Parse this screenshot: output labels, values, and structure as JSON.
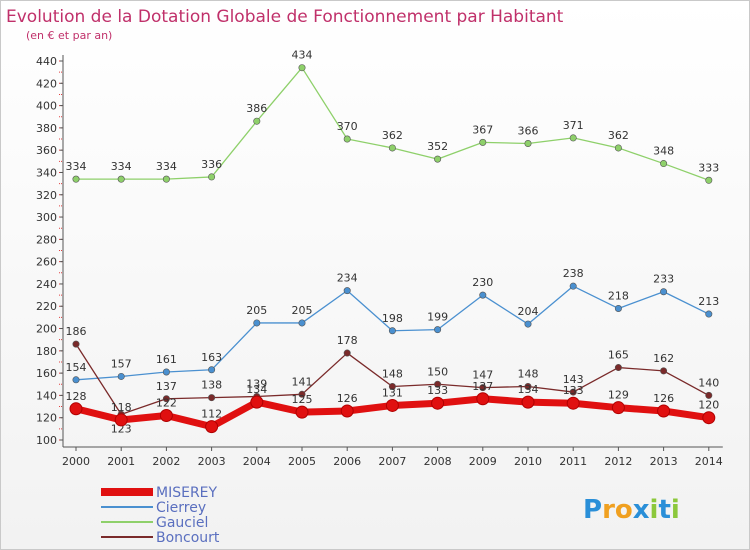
{
  "title": "Evolution de la Dotation Globale de Fonctionnement par Habitant",
  "subtitle": "(en € et par an)",
  "logo": {
    "letters": [
      "P",
      "r",
      "o",
      "x",
      "i",
      "t",
      "i"
    ],
    "colors": [
      "#2a8fd8",
      "#f0a020",
      "#f0a020",
      "#2a8fd8",
      "#8cc83c",
      "#2a8fd8",
      "#8cc83c"
    ]
  },
  "chart_data": {
    "type": "line",
    "x": [
      "2000",
      "2001",
      "2002",
      "2003",
      "2004",
      "2005",
      "2006",
      "2007",
      "2008",
      "2009",
      "2010",
      "2011",
      "2012",
      "2013",
      "2014"
    ],
    "ylim": [
      100,
      440
    ],
    "yticks": [
      100,
      120,
      140,
      160,
      180,
      200,
      220,
      240,
      260,
      280,
      300,
      320,
      340,
      360,
      380,
      400,
      420,
      440
    ],
    "grid": false,
    "legend_position": "bottom-left",
    "series": [
      {
        "name": "MISEREY",
        "color": "#e01010",
        "width": 7,
        "values": [
          128,
          118,
          122,
          112,
          134,
          125,
          126,
          131,
          133,
          137,
          134,
          133,
          129,
          126,
          120
        ],
        "labels": [
          "128",
          "118",
          "122",
          "112",
          "134",
          "125",
          "126",
          "131",
          "133",
          "137",
          "134",
          "133",
          "129",
          "126",
          "120"
        ]
      },
      {
        "name": "Cierrey",
        "color": "#4a90d0",
        "width": 1.3,
        "values": [
          154,
          157,
          161,
          163,
          205,
          205,
          234,
          198,
          199,
          230,
          204,
          238,
          218,
          233,
          213
        ],
        "labels": [
          "154",
          "157",
          "161",
          "163",
          "205",
          "205",
          "234",
          "198",
          "199",
          "230",
          "204",
          "238",
          "218",
          "233",
          "213"
        ]
      },
      {
        "name": "Gauciel",
        "color": "#8ed06a",
        "width": 1.3,
        "values": [
          334,
          334,
          334,
          336,
          386,
          434,
          370,
          362,
          352,
          367,
          366,
          371,
          362,
          348,
          333
        ],
        "labels": [
          "334",
          "334",
          "334",
          "336",
          "386",
          "434",
          "370",
          "362",
          "352",
          "367",
          "366",
          "371",
          "362",
          "348",
          "333"
        ]
      },
      {
        "name": "Boncourt",
        "color": "#7a2a2a",
        "width": 1.3,
        "values": [
          186,
          123,
          137,
          138,
          139,
          141,
          178,
          148,
          150,
          147,
          148,
          143,
          165,
          162,
          140
        ],
        "labels": [
          "186",
          "123",
          "137",
          "138",
          "139",
          "141",
          "178",
          "148",
          "150",
          "147",
          "148",
          "143",
          "165",
          "162",
          "140"
        ]
      }
    ]
  }
}
